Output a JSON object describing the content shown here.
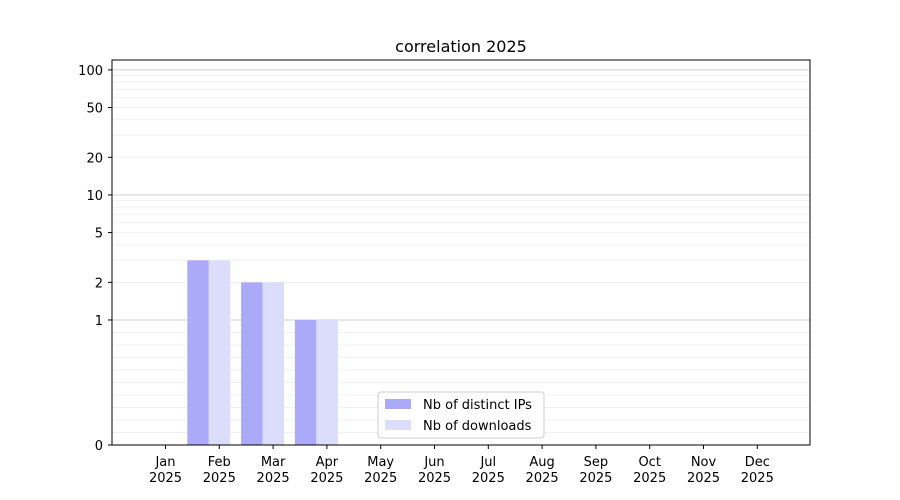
{
  "chart_data": {
    "type": "bar",
    "title": "correlation 2025",
    "xlabel": "",
    "ylabel": "",
    "yscale": "symlog",
    "ylim": [
      0,
      120
    ],
    "y_ticks": [
      0,
      1,
      2,
      5,
      10,
      20,
      50,
      100
    ],
    "grid": true,
    "legend_position": "lower-center",
    "categories": [
      {
        "month": "Jan",
        "year": "2025"
      },
      {
        "month": "Feb",
        "year": "2025"
      },
      {
        "month": "Mar",
        "year": "2025"
      },
      {
        "month": "Apr",
        "year": "2025"
      },
      {
        "month": "May",
        "year": "2025"
      },
      {
        "month": "Jun",
        "year": "2025"
      },
      {
        "month": "Jul",
        "year": "2025"
      },
      {
        "month": "Aug",
        "year": "2025"
      },
      {
        "month": "Sep",
        "year": "2025"
      },
      {
        "month": "Oct",
        "year": "2025"
      },
      {
        "month": "Nov",
        "year": "2025"
      },
      {
        "month": "Dec",
        "year": "2025"
      }
    ],
    "series": [
      {
        "name": "Nb of distinct IPs",
        "color": "#aaaaf8",
        "values": [
          0,
          3,
          2,
          1,
          0,
          0,
          0,
          0,
          0,
          0,
          0,
          0
        ]
      },
      {
        "name": "Nb of downloads",
        "color": "#dcdcfb",
        "values": [
          0,
          3,
          2,
          1,
          0,
          0,
          0,
          0,
          0,
          0,
          0,
          0
        ]
      }
    ]
  }
}
